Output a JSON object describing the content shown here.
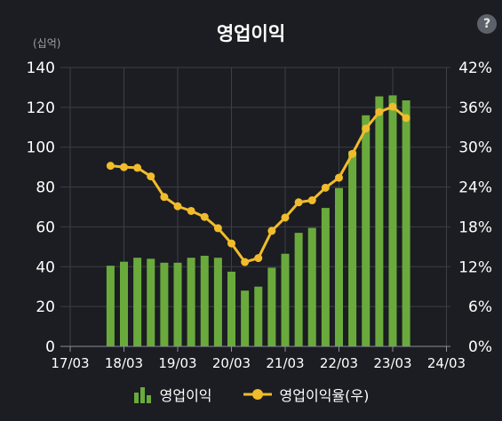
{
  "chart_data": {
    "type": "bar",
    "title": "영업이익",
    "ylabel_unit": "(십억)",
    "x_ticks": [
      "17/03",
      "18/03",
      "19/03",
      "20/03",
      "21/03",
      "22/03",
      "23/03",
      "24/03"
    ],
    "ylim_left": [
      0,
      140
    ],
    "y_ticks_left": [
      "0",
      "20",
      "40",
      "60",
      "80",
      "100",
      "120",
      "140"
    ],
    "ylim_right": [
      0,
      42
    ],
    "y_ticks_right": [
      "0%",
      "6%",
      "12%",
      "18%",
      "24%",
      "30%",
      "36%",
      "42%"
    ],
    "grid": true,
    "legend_position": "bottom",
    "series": [
      {
        "name": "영업이익",
        "type": "bar",
        "axis": "left",
        "color": "#6aaa3c",
        "values": [
          40.5,
          42.5,
          44.5,
          44,
          42,
          42,
          44.5,
          45.5,
          44.5,
          37.5,
          28,
          30,
          39.5,
          46.5,
          57,
          59.5,
          69.5,
          79.5,
          98,
          116,
          125.5,
          126,
          123.5
        ]
      },
      {
        "name": "영업이익율(우)",
        "type": "line",
        "axis": "right",
        "color": "#f1bc2b",
        "values": [
          27.2,
          27.0,
          26.9,
          25.6,
          22.5,
          21.1,
          20.4,
          19.5,
          17.8,
          15.5,
          12.7,
          13.3,
          17.4,
          19.4,
          21.7,
          22.0,
          23.9,
          25.4,
          29.0,
          32.8,
          35.3,
          36.1,
          34.4
        ]
      }
    ],
    "period_start": "17/03",
    "period_step_quarters": 1,
    "first_data_period": "17/12"
  },
  "ui": {
    "help_label": "?"
  },
  "colors": {
    "background": "#1b1d22",
    "grid": "#3c3f46",
    "bar": "#6aaa3c",
    "line": "#f1bc2b"
  }
}
